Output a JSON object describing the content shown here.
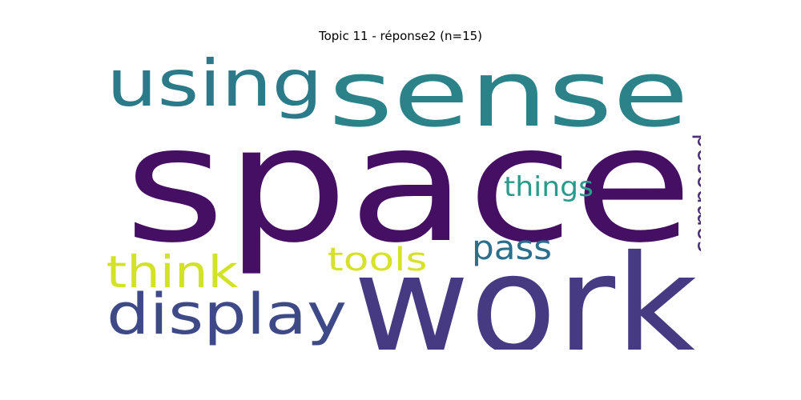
{
  "title": "Topic 11 - réponse2 (n=15)",
  "words": [
    {
      "text": "space",
      "color": "#450f63"
    },
    {
      "text": "work",
      "color": "#463a82"
    },
    {
      "text": "sense",
      "color": "#2b8289"
    },
    {
      "text": "using",
      "color": "#2b7a89"
    },
    {
      "text": "display",
      "color": "#3e4a87"
    },
    {
      "text": "think",
      "color": "#d2e226"
    },
    {
      "text": "things",
      "color": "#2b9a8c"
    },
    {
      "text": "tools",
      "color": "#d6e12a"
    },
    {
      "text": "pass",
      "color": "#2a6f8c"
    },
    {
      "text": "composed",
      "color": "#482c75"
    }
  ]
}
